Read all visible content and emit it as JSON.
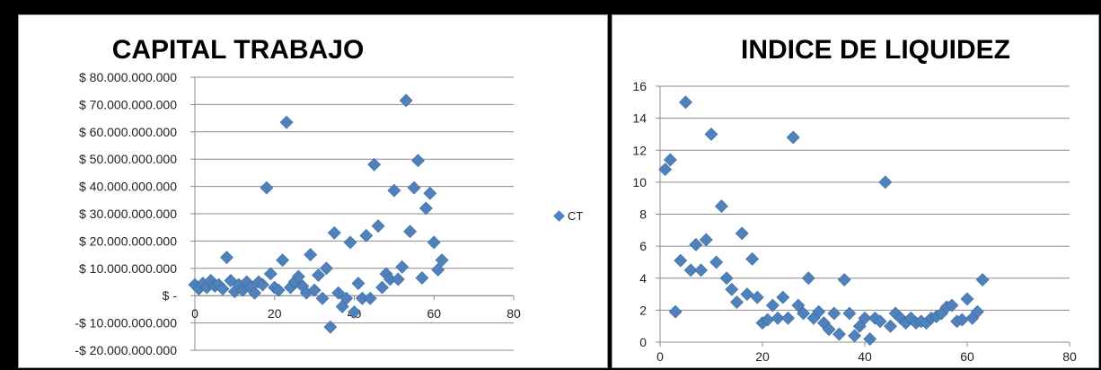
{
  "chart_data": [
    {
      "type": "scatter",
      "title": "CAPITAL TRABAJO",
      "xlabel": "",
      "ylabel": "",
      "xlim": [
        0,
        80
      ],
      "ylim": [
        -20000000000,
        80000000000
      ],
      "x_ticks": [
        "0",
        "20",
        "40",
        "60",
        "80"
      ],
      "y_ticks": [
        "$ 80.000.000.000",
        "$ 70.000.000.000",
        "$ 60.000.000.000",
        "$ 50.000.000.000",
        "$ 40.000.000.000",
        "$ 30.000.000.000",
        "$ 20.000.000.000",
        "$ 10.000.000.000",
        "$ -",
        "-$ 10.000.000.000",
        "-$ 20.000.000.000"
      ],
      "grid": true,
      "legend_position": "right",
      "color": "#4f81bd",
      "series": [
        {
          "name": "CT",
          "points": [
            [
              0,
              4000000000
            ],
            [
              1,
              2500000000
            ],
            [
              2,
              4500000000
            ],
            [
              3,
              3000000000
            ],
            [
              4,
              5500000000
            ],
            [
              5,
              3500000000
            ],
            [
              6,
              4000000000
            ],
            [
              7,
              2500000000
            ],
            [
              8,
              14000000000
            ],
            [
              9,
              5500000000
            ],
            [
              10,
              1500000000
            ],
            [
              11,
              4000000000
            ],
            [
              12,
              2000000000
            ],
            [
              13,
              5000000000
            ],
            [
              14,
              3000000000
            ],
            [
              15,
              1000000000
            ],
            [
              16,
              5000000000
            ],
            [
              17,
              4000000000
            ],
            [
              18,
              39500000000
            ],
            [
              19,
              8000000000
            ],
            [
              20,
              3000000000
            ],
            [
              21,
              2000000000
            ],
            [
              22,
              13000000000
            ],
            [
              23,
              63500000000
            ],
            [
              24,
              3000000000
            ],
            [
              25,
              5000000000
            ],
            [
              26,
              7000000000
            ],
            [
              27,
              3500000000
            ],
            [
              28,
              1000000000
            ],
            [
              29,
              15000000000
            ],
            [
              30,
              2000000000
            ],
            [
              31,
              7500000000
            ],
            [
              32,
              -1000000000
            ],
            [
              33,
              10000000000
            ],
            [
              34,
              -11500000000
            ],
            [
              35,
              23000000000
            ],
            [
              36,
              1000000000
            ],
            [
              37,
              -4000000000
            ],
            [
              38,
              -1000000000
            ],
            [
              39,
              19500000000
            ],
            [
              40,
              -6000000000
            ],
            [
              41,
              4500000000
            ],
            [
              42,
              -1000000000
            ],
            [
              43,
              22000000000
            ],
            [
              44,
              -1000000000
            ],
            [
              45,
              48000000000
            ],
            [
              46,
              25500000000
            ],
            [
              47,
              3000000000
            ],
            [
              48,
              8000000000
            ],
            [
              49,
              6000000000
            ],
            [
              50,
              38500000000
            ],
            [
              51,
              6000000000
            ],
            [
              52,
              10500000000
            ],
            [
              53,
              71500000000
            ],
            [
              54,
              23500000000
            ],
            [
              55,
              39500000000
            ],
            [
              56,
              49500000000
            ],
            [
              57,
              6500000000
            ],
            [
              58,
              32000000000
            ],
            [
              59,
              37500000000
            ],
            [
              60,
              19500000000
            ],
            [
              61,
              9500000000
            ],
            [
              62,
              13000000000
            ]
          ]
        }
      ]
    },
    {
      "type": "scatter",
      "title": "INDICE DE LIQUIDEZ",
      "xlabel": "",
      "ylabel": "",
      "xlim": [
        0,
        80
      ],
      "ylim": [
        0,
        16
      ],
      "x_ticks": [
        "0",
        "20",
        "40",
        "60",
        "80"
      ],
      "y_ticks": [
        "16",
        "14",
        "12",
        "10",
        "8",
        "6",
        "4",
        "2",
        "0"
      ],
      "grid": true,
      "color": "#4f81bd",
      "series": [
        {
          "points": [
            [
              1,
              10.8
            ],
            [
              2,
              11.4
            ],
            [
              3,
              1.9
            ],
            [
              4,
              5.1
            ],
            [
              5,
              15.0
            ],
            [
              6,
              4.5
            ],
            [
              7,
              6.1
            ],
            [
              8,
              4.5
            ],
            [
              9,
              6.4
            ],
            [
              10,
              13.0
            ],
            [
              11,
              5.0
            ],
            [
              12,
              8.5
            ],
            [
              13,
              4.0
            ],
            [
              14,
              3.3
            ],
            [
              15,
              2.5
            ],
            [
              16,
              6.8
            ],
            [
              17,
              3.0
            ],
            [
              18,
              5.2
            ],
            [
              19,
              2.8
            ],
            [
              20,
              1.2
            ],
            [
              21,
              1.4
            ],
            [
              22,
              2.3
            ],
            [
              23,
              1.5
            ],
            [
              24,
              2.8
            ],
            [
              25,
              1.5
            ],
            [
              26,
              12.8
            ],
            [
              27,
              2.3
            ],
            [
              28,
              1.8
            ],
            [
              29,
              4.0
            ],
            [
              30,
              1.5
            ],
            [
              31,
              1.9
            ],
            [
              32,
              1.2
            ],
            [
              33,
              0.8
            ],
            [
              34,
              1.8
            ],
            [
              35,
              0.5
            ],
            [
              36,
              3.9
            ],
            [
              37,
              1.8
            ],
            [
              38,
              0.4
            ],
            [
              39,
              1.0
            ],
            [
              40,
              1.5
            ],
            [
              41,
              0.2
            ],
            [
              42,
              1.5
            ],
            [
              43,
              1.3
            ],
            [
              44,
              10.0
            ],
            [
              45,
              1.0
            ],
            [
              46,
              1.8
            ],
            [
              47,
              1.5
            ],
            [
              48,
              1.2
            ],
            [
              49,
              1.5
            ],
            [
              50,
              1.2
            ],
            [
              51,
              1.3
            ],
            [
              52,
              1.2
            ],
            [
              53,
              1.5
            ],
            [
              54,
              1.6
            ],
            [
              55,
              1.8
            ],
            [
              56,
              2.2
            ],
            [
              57,
              2.3
            ],
            [
              58,
              1.3
            ],
            [
              59,
              1.4
            ],
            [
              60,
              2.7
            ],
            [
              61,
              1.5
            ],
            [
              62,
              1.9
            ],
            [
              63,
              3.9
            ]
          ]
        }
      ]
    }
  ]
}
